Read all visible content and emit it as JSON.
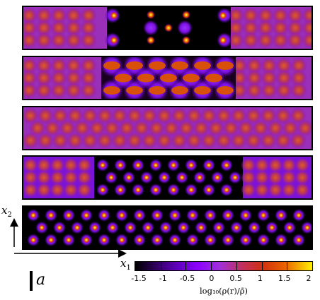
{
  "figure": {
    "panels": [
      {
        "id": "panel-1",
        "description": "clustered-core"
      },
      {
        "id": "panel-2",
        "description": "checker-core"
      },
      {
        "id": "panel-3",
        "description": "uniform-modulated"
      },
      {
        "id": "panel-4",
        "description": "crystal-center"
      },
      {
        "id": "panel-5",
        "description": "full-crystal"
      }
    ],
    "axes": {
      "x1": "x",
      "x1_sub": "1",
      "x2": "x",
      "x2_sub": "2"
    },
    "scale_bar_label": "a",
    "colorbar": {
      "ticks": [
        "-1.5",
        "-1",
        "-0.5",
        "0",
        "0.5",
        "1",
        "1.5",
        "2"
      ],
      "title": "log₁₀(ρ(r)/ρ̄)",
      "range": [
        -1.5,
        2
      ],
      "colors": [
        "#000000",
        "#8b00ff",
        "#c03060",
        "#e86000",
        "#fff000"
      ]
    }
  }
}
